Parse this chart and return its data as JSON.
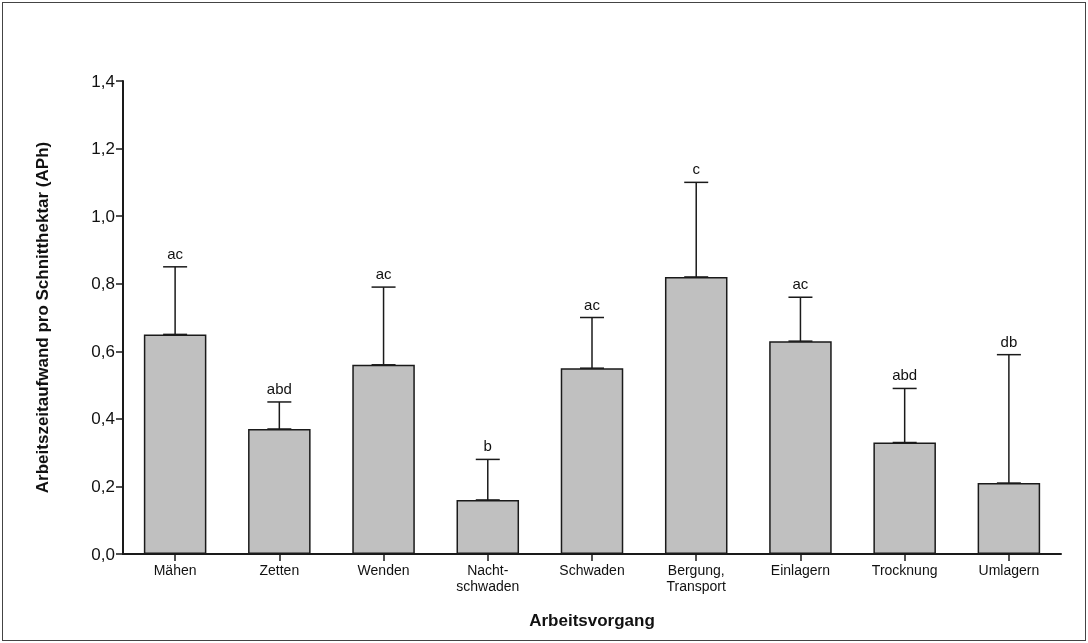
{
  "chart_data": {
    "type": "bar",
    "xlabel": "Arbeitsvorgang",
    "ylabel": "Arbeitszeitaufwand pro Schnitthektar (APh)",
    "categories": [
      "Mähen",
      "Zetten",
      "Wenden",
      "Nacht-\nschwaden",
      "Schwaden",
      "Bergung,\nTransport",
      "Einlagern",
      "Trocknung",
      "Umlagern"
    ],
    "values": [
      0.65,
      0.37,
      0.56,
      0.16,
      0.55,
      0.82,
      0.63,
      0.33,
      0.21
    ],
    "errors": [
      [
        0.65,
        0.85
      ],
      [
        0.37,
        0.45
      ],
      [
        0.56,
        0.79
      ],
      [
        0.16,
        0.28
      ],
      [
        0.55,
        0.7
      ],
      [
        0.82,
        1.1
      ],
      [
        0.63,
        0.76
      ],
      [
        0.33,
        0.49
      ],
      [
        0.21,
        0.59
      ]
    ],
    "color": "#c0c0c0",
    "ylim": [
      0,
      1.4
    ],
    "yticks": [
      {
        "value": 0,
        "label": "0,0"
      },
      {
        "value": 0.2,
        "label": "0,2"
      },
      {
        "value": 0.4,
        "label": "0,4"
      },
      {
        "value": 0.6,
        "label": "0,6"
      },
      {
        "value": 0.8,
        "label": "0,8"
      },
      {
        "value": 1.0,
        "label": "1,0"
      },
      {
        "value": 1.2,
        "label": "1,2"
      },
      {
        "value": 1.4,
        "label": "1,4"
      }
    ],
    "grid": false,
    "annotations": [
      {
        "text": "ac",
        "x": "Mähen",
        "y": 0.85
      },
      {
        "text": "abd",
        "x": "Zetten",
        "y": 0.45
      },
      {
        "text": "ac",
        "x": "Wenden",
        "y": 0.79
      },
      {
        "text": "b",
        "x": "Nacht-\nschwaden",
        "y": 0.28
      },
      {
        "text": "ac",
        "x": "Schwaden",
        "y": 0.7
      },
      {
        "text": "c",
        "x": "Bergung,\nTransport",
        "y": 1.1
      },
      {
        "text": "ac",
        "x": "Einlagern",
        "y": 0.76
      },
      {
        "text": "abd",
        "x": "Trocknung",
        "y": 0.49
      },
      {
        "text": "db",
        "x": "Umlagern",
        "y": 0.59
      }
    ]
  }
}
